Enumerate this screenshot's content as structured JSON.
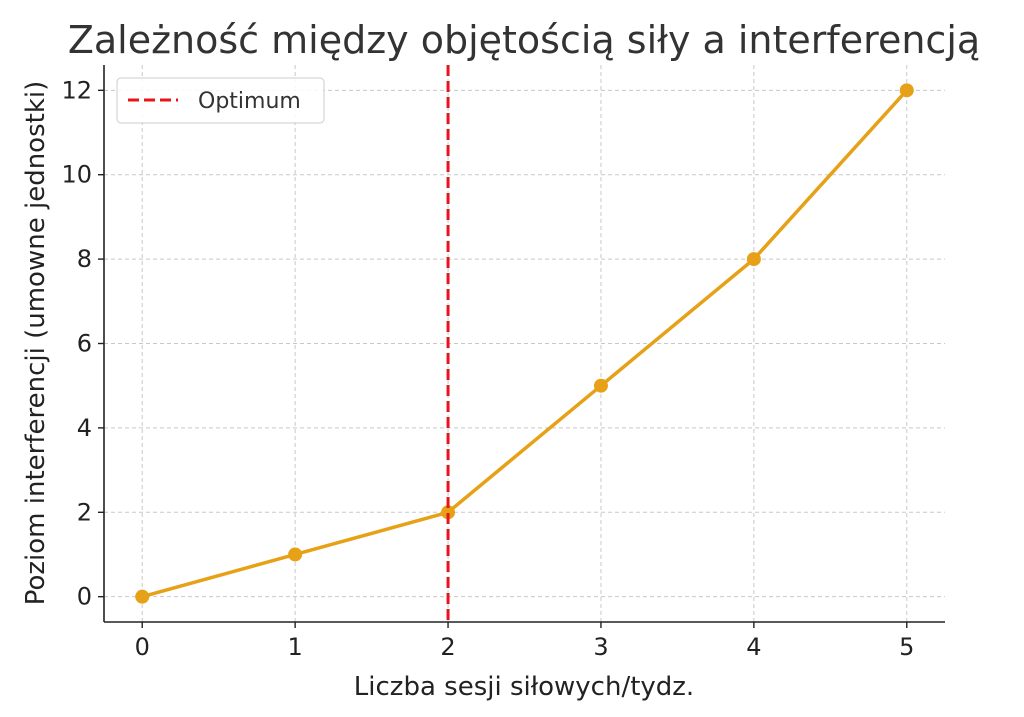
{
  "chart_data": {
    "type": "line",
    "title": "Zależność między objętością siły a interferencją",
    "xlabel": "Liczba sesji siłowych/tydz.",
    "ylabel": "Poziom interferencji (umowne jednostki)",
    "x": [
      0,
      1,
      2,
      3,
      4,
      5
    ],
    "series": [
      {
        "values": [
          0,
          1,
          2,
          5,
          8,
          12
        ],
        "color": "#e6a117"
      }
    ],
    "reference_lines": [
      {
        "orientation": "vertical",
        "x": 2,
        "name": "Optimum",
        "color": "#e8141c",
        "style": "dashed"
      }
    ],
    "xticks": [
      0,
      1,
      2,
      3,
      4,
      5
    ],
    "yticks": [
      0,
      2,
      4,
      6,
      8,
      10,
      12
    ],
    "xlim": [
      -0.25,
      5.25
    ],
    "ylim": [
      -0.6,
      12.6
    ],
    "grid": true,
    "legend_position": "top-left"
  }
}
